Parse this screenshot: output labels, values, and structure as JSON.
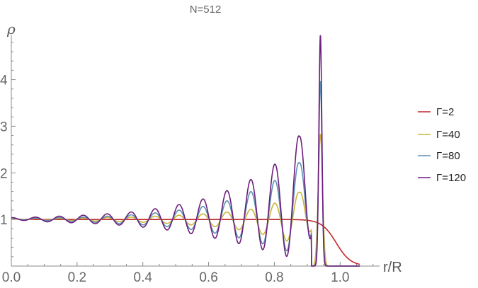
{
  "chart_data": {
    "type": "line",
    "title": "N=512",
    "xlabel": "r/R",
    "ylabel": "ρ",
    "xlim": [
      0.0,
      1.12
    ],
    "ylim": [
      0.0,
      4.95
    ],
    "x_ticks": [
      "0.0",
      "0.2",
      "0.4",
      "0.6",
      "0.8",
      "1.0"
    ],
    "y_ticks": [
      "1",
      "2",
      "3",
      "4"
    ],
    "grid": false,
    "legend_position": "right",
    "peak_positions": [
      0.0,
      0.072,
      0.145,
      0.218,
      0.291,
      0.364,
      0.437,
      0.51,
      0.583,
      0.656,
      0.729,
      0.802,
      0.876,
      0.94
    ],
    "series": [
      {
        "name": "Γ=2",
        "color": "#c1272d",
        "gamma": 2,
        "peak_heights": [
          1.02,
          1.0,
          1.0,
          1.0,
          1.0,
          1.0,
          1.0,
          1.0,
          1.0,
          1.0,
          1.0,
          1.0,
          1.0,
          1.0
        ],
        "trough_depths": [
          0.0,
          0.0,
          0.0,
          0.0,
          0.0,
          0.0,
          0.0,
          0.0,
          0.0,
          0.0,
          0.0,
          0.0,
          0.0,
          0.0
        ],
        "edge": 0.988,
        "edge_width": 0.022
      },
      {
        "name": "Γ=40",
        "color": "#c9b53a",
        "gamma": 40,
        "peak_heights": [
          1.02,
          1.02,
          1.02,
          1.03,
          1.04,
          1.05,
          1.07,
          1.09,
          1.12,
          1.16,
          1.22,
          1.35,
          1.59,
          2.83
        ],
        "trough_depths": [
          0.0,
          0.01,
          0.02,
          0.03,
          0.04,
          0.05,
          0.07,
          0.1,
          0.13,
          0.18,
          0.26,
          0.38,
          0.55,
          0.0
        ],
        "edge": 0.962,
        "edge_width": 0.0065
      },
      {
        "name": "Γ=80",
        "color": "#5b90b5",
        "gamma": 80,
        "peak_heights": [
          1.03,
          1.03,
          1.04,
          1.05,
          1.07,
          1.1,
          1.14,
          1.2,
          1.28,
          1.4,
          1.6,
          1.84,
          2.23,
          3.97
        ],
        "trough_depths": [
          0.0,
          0.02,
          0.03,
          0.05,
          0.07,
          0.1,
          0.13,
          0.18,
          0.25,
          0.34,
          0.45,
          0.6,
          0.75,
          0.0
        ],
        "edge": 0.954,
        "edge_width": 0.005
      },
      {
        "name": "Γ=120",
        "color": "#6b1f7c",
        "gamma": 120,
        "peak_heights": [
          1.04,
          1.05,
          1.07,
          1.09,
          1.12,
          1.16,
          1.23,
          1.32,
          1.44,
          1.62,
          1.86,
          2.19,
          2.81,
          4.96
        ],
        "trough_depths": [
          0.0,
          0.04,
          0.06,
          0.08,
          0.1,
          0.14,
          0.19,
          0.26,
          0.35,
          0.46,
          0.58,
          0.72,
          0.87,
          0.0
        ],
        "edge": 0.952,
        "edge_width": 0.0045
      }
    ]
  }
}
